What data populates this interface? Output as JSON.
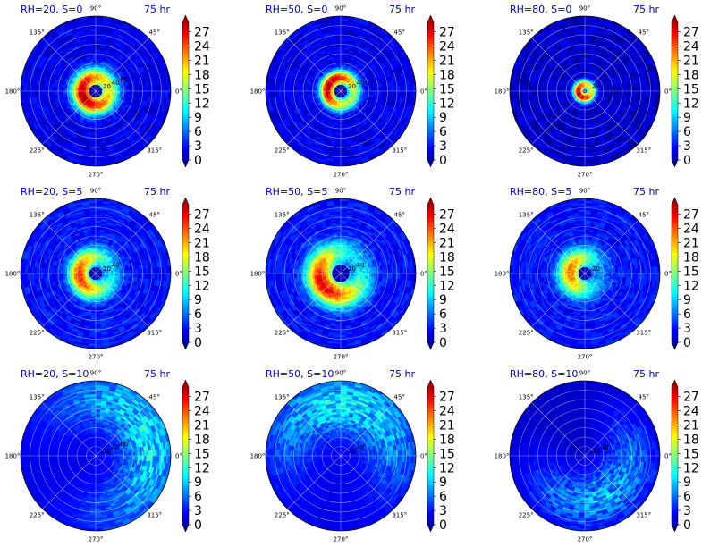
{
  "figure": {
    "time_label": "75 hr",
    "angle_labels": [
      "90°",
      "45°",
      "0°",
      "315°",
      "270°",
      "225°",
      "180°",
      "135°"
    ],
    "colorbar_ticks": [
      "0",
      "3",
      "6",
      "9",
      "12",
      "15",
      "18",
      "21",
      "24",
      "27"
    ],
    "colormap": [
      "#00007f",
      "#0000ff",
      "#007fff",
      "#00ffff",
      "#7fff7f",
      "#ffff00",
      "#ff7f00",
      "#ff0000",
      "#7f0000"
    ]
  },
  "chart_data": [
    {
      "type": "heatmap",
      "title": "RH=20, S=0",
      "radial_labels": [
        "20",
        "40",
        "60"
      ],
      "structure": "ring",
      "peak_radius": 0.18,
      "ring_width": 0.14,
      "peak_value": 28,
      "offset_deg": 200,
      "asymmetry": 0.4,
      "background": 3
    },
    {
      "type": "heatmap",
      "title": "RH=50, S=0",
      "radial_labels": [
        "20",
        "40"
      ],
      "structure": "ring",
      "peak_radius": 0.18,
      "ring_width": 0.1,
      "peak_value": 28,
      "offset_deg": 150,
      "asymmetry": 0.5,
      "background": 3
    },
    {
      "type": "heatmap",
      "title": "RH=80, S=0",
      "radial_labels": [
        "20"
      ],
      "structure": "ring",
      "peak_radius": 0.09,
      "ring_width": 0.07,
      "peak_value": 28,
      "offset_deg": 210,
      "asymmetry": 0.4,
      "background": 2
    },
    {
      "type": "heatmap",
      "title": "RH=20, S=5",
      "radial_labels": [
        "20",
        "40"
      ],
      "structure": "ring",
      "peak_radius": 0.22,
      "ring_width": 0.14,
      "peak_value": 24,
      "offset_deg": 190,
      "asymmetry": 0.7,
      "background": 4
    },
    {
      "type": "heatmap",
      "title": "RH=50, S=5",
      "radial_labels": [
        "20",
        "40"
      ],
      "structure": "ring",
      "peak_radius": 0.28,
      "ring_width": 0.18,
      "peak_value": 26,
      "offset_deg": 215,
      "asymmetry": 0.75,
      "background": 4
    },
    {
      "type": "heatmap",
      "title": "RH=80, S=5",
      "radial_labels": [
        "20"
      ],
      "structure": "ring",
      "peak_radius": 0.2,
      "ring_width": 0.16,
      "peak_value": 22,
      "offset_deg": 175,
      "asymmetry": 0.8,
      "background": 4
    },
    {
      "type": "heatmap",
      "title": "RH=20, S=10",
      "radial_labels": [
        "20",
        "40",
        "60"
      ],
      "structure": "diffuse",
      "peak_radius": 0.75,
      "ring_width": 0.4,
      "peak_value": 10,
      "offset_deg": 20,
      "asymmetry": 0.6,
      "background": 3
    },
    {
      "type": "heatmap",
      "title": "RH=50, S=10",
      "radial_labels": [
        "20",
        "40"
      ],
      "structure": "diffuse",
      "peak_radius": 0.7,
      "ring_width": 0.4,
      "peak_value": 10,
      "offset_deg": 80,
      "asymmetry": 0.6,
      "background": 3
    },
    {
      "type": "heatmap",
      "title": "RH=80, S=10",
      "radial_labels": [
        "20",
        "40"
      ],
      "structure": "diffuse",
      "peak_radius": 0.6,
      "ring_width": 0.4,
      "peak_value": 8,
      "offset_deg": 300,
      "asymmetry": 0.5,
      "background": 2
    }
  ]
}
